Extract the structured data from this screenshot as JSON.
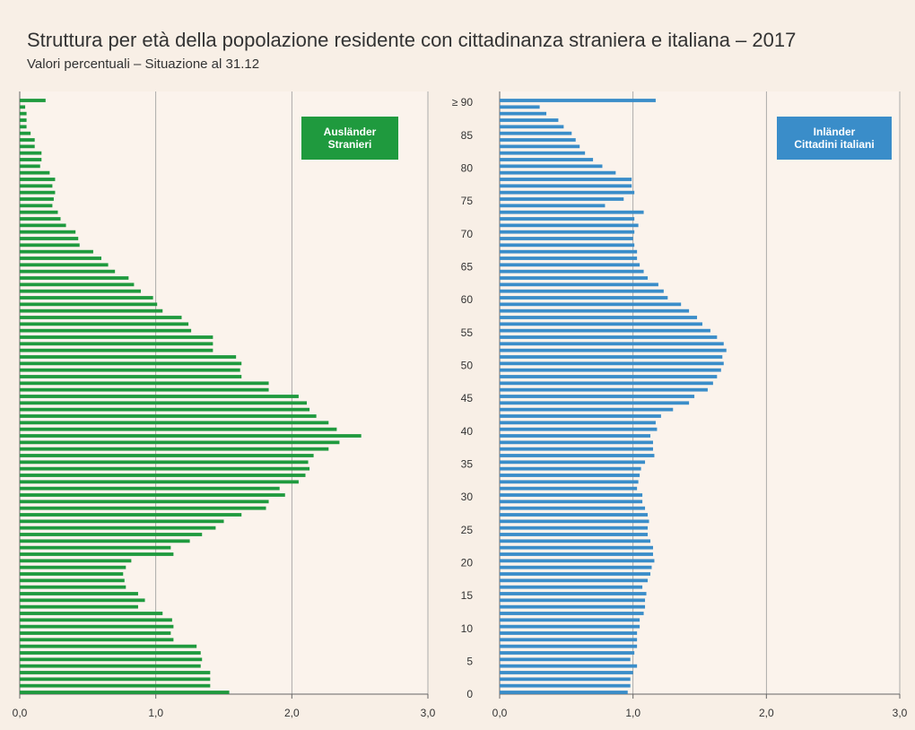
{
  "chart_data": {
    "type": "bar",
    "title": "Struttura per età della popolazione residente con cittadinanza straniera e italiana – 2017",
    "subtitle": "Valori percentuali – Situazione al 31.12",
    "categories": [
      "0",
      null,
      null,
      null,
      null,
      "5",
      null,
      null,
      null,
      null,
      "10",
      null,
      null,
      null,
      null,
      "15",
      null,
      null,
      null,
      null,
      "20",
      null,
      null,
      null,
      null,
      "25",
      null,
      null,
      null,
      null,
      "30",
      null,
      null,
      null,
      null,
      "35",
      null,
      null,
      null,
      null,
      "40",
      null,
      null,
      null,
      null,
      "45",
      null,
      null,
      null,
      null,
      "50",
      null,
      null,
      null,
      null,
      "55",
      null,
      null,
      null,
      null,
      "60",
      null,
      null,
      null,
      null,
      "65",
      null,
      null,
      null,
      null,
      "70",
      null,
      null,
      null,
      null,
      "75",
      null,
      null,
      null,
      null,
      "80",
      null,
      null,
      null,
      null,
      "85",
      null,
      null,
      null,
      null,
      "≥ 90"
    ],
    "series": [
      {
        "name": "Ausländer\nStranieri",
        "color": "#1f9a3e",
        "values": [
          1.54,
          1.4,
          1.4,
          1.4,
          1.33,
          1.34,
          1.33,
          1.3,
          1.13,
          1.11,
          1.13,
          1.12,
          1.05,
          0.87,
          0.92,
          0.87,
          0.78,
          0.77,
          0.76,
          0.78,
          0.82,
          1.13,
          1.11,
          1.25,
          1.34,
          1.44,
          1.5,
          1.63,
          1.81,
          1.83,
          1.95,
          1.91,
          2.05,
          2.1,
          2.13,
          2.12,
          2.16,
          2.27,
          2.35,
          2.51,
          2.33,
          2.27,
          2.18,
          2.13,
          2.11,
          2.05,
          1.83,
          1.83,
          1.63,
          1.62,
          1.63,
          1.59,
          1.42,
          1.42,
          1.42,
          1.26,
          1.24,
          1.19,
          1.05,
          1.01,
          0.98,
          0.89,
          0.84,
          0.8,
          0.7,
          0.65,
          0.6,
          0.54,
          0.44,
          0.43,
          0.41,
          0.34,
          0.3,
          0.28,
          0.24,
          0.25,
          0.26,
          0.24,
          0.26,
          0.22,
          0.15,
          0.16,
          0.16,
          0.11,
          0.11,
          0.08,
          0.05,
          0.05,
          0.05,
          0.04,
          0.19
        ]
      },
      {
        "name": "Inländer\nCittadini italiani",
        "color": "#3a8dc9",
        "values": [
          0.96,
          0.98,
          0.98,
          1.0,
          1.03,
          0.98,
          1.01,
          1.03,
          1.03,
          1.03,
          1.05,
          1.05,
          1.08,
          1.09,
          1.09,
          1.1,
          1.07,
          1.11,
          1.13,
          1.14,
          1.16,
          1.15,
          1.15,
          1.13,
          1.11,
          1.11,
          1.12,
          1.11,
          1.09,
          1.07,
          1.07,
          1.03,
          1.04,
          1.05,
          1.06,
          1.09,
          1.16,
          1.15,
          1.15,
          1.13,
          1.18,
          1.17,
          1.21,
          1.3,
          1.42,
          1.46,
          1.56,
          1.6,
          1.63,
          1.66,
          1.68,
          1.67,
          1.7,
          1.68,
          1.63,
          1.58,
          1.52,
          1.48,
          1.42,
          1.36,
          1.26,
          1.23,
          1.19,
          1.11,
          1.08,
          1.05,
          1.03,
          1.03,
          1.01,
          1.0,
          1.01,
          1.04,
          1.01,
          1.08,
          0.79,
          0.93,
          1.01,
          0.99,
          0.99,
          0.87,
          0.77,
          0.7,
          0.64,
          0.6,
          0.57,
          0.54,
          0.48,
          0.44,
          0.35,
          0.3,
          1.17
        ]
      }
    ],
    "xlim": [
      0,
      3
    ],
    "xticks": [
      {
        "value": 0,
        "label": "0,0"
      },
      {
        "value": 1,
        "label": "1,0"
      },
      {
        "value": 2,
        "label": "2,0"
      },
      {
        "value": 3,
        "label": "3,0"
      }
    ],
    "grid": true
  }
}
